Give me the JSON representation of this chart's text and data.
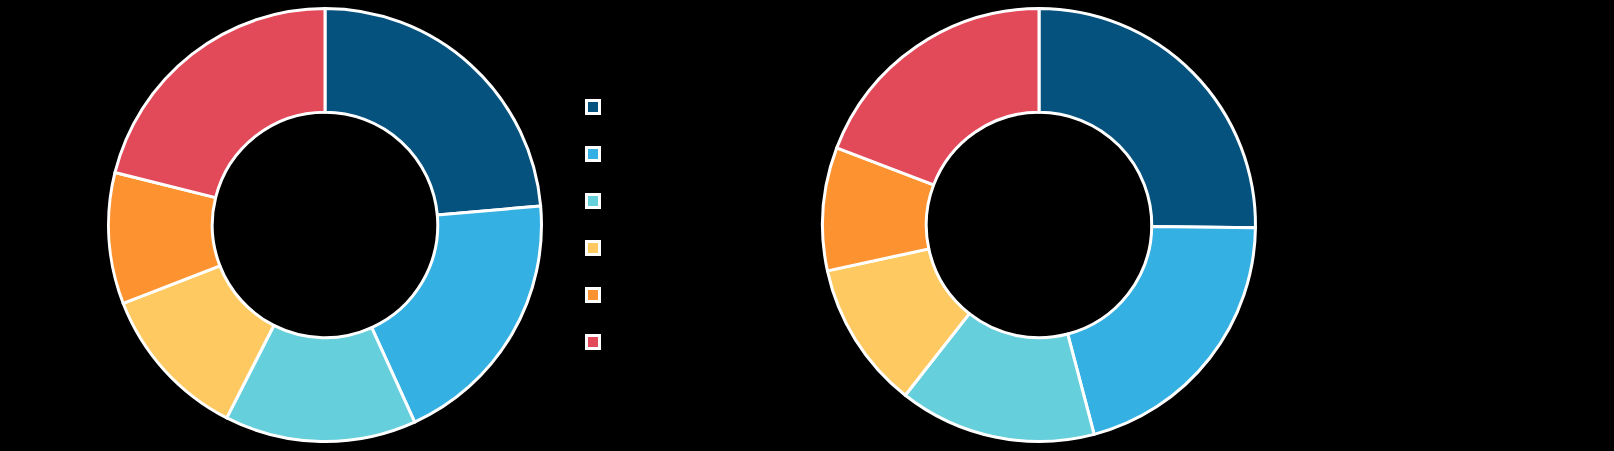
{
  "chart_data": [
    {
      "type": "donut",
      "categories": [
        null,
        null,
        null,
        null,
        null,
        null
      ],
      "values": [
        23.6,
        19.6,
        14.3,
        11.6,
        9.8,
        21.1
      ],
      "colors": [
        "#06527f",
        "#35b0e3",
        "#65cfdb",
        "#fec961",
        "#fd9330",
        "#e24a5a"
      ]
    },
    {
      "type": "donut",
      "categories": [
        null,
        null,
        null,
        null,
        null,
        null
      ],
      "values": [
        25.2,
        20.7,
        14.7,
        11.0,
        9.2,
        19.2
      ],
      "colors": [
        "#06527f",
        "#35b0e3",
        "#65cfdb",
        "#fec961",
        "#fd9330",
        "#e24a5a"
      ]
    }
  ]
}
